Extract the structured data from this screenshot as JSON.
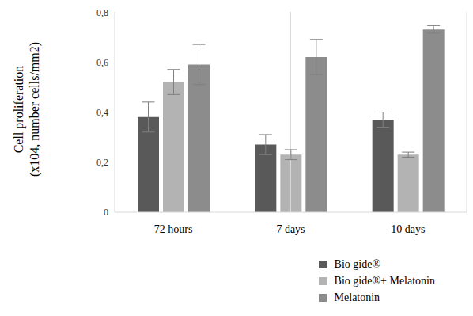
{
  "chart_data": {
    "type": "bar",
    "categories": [
      "72 hours",
      "7 days",
      "10 days"
    ],
    "ylabel": [
      "Cell proliferation",
      "(x104, number cells/mm2)"
    ],
    "ylim": [
      0,
      0.8
    ],
    "yticks": [
      0,
      {
        "value": 0.2,
        "label": "0,2"
      },
      {
        "value": 0.4,
        "label": "0,4"
      },
      {
        "value": 0.6,
        "label": "0,6"
      },
      {
        "value": 0.8,
        "label": "0,8"
      }
    ],
    "legend": "bottom-right",
    "series": [
      {
        "name": "Bio gide®",
        "color": "#595959",
        "values": [
          0.38,
          0.27,
          0.37
        ],
        "errors": [
          0.06,
          0.04,
          0.03
        ]
      },
      {
        "name": "Bio gide®+ Melatonin",
        "color": "#b3b3b3",
        "values": [
          0.52,
          0.23,
          0.23
        ],
        "errors": [
          0.05,
          0.02,
          0.01
        ]
      },
      {
        "name": "Melatonin",
        "color": "#8c8c8c",
        "values": [
          0.59,
          0.62,
          0.73
        ],
        "errors": [
          0.08,
          0.07,
          0.015
        ]
      }
    ]
  }
}
